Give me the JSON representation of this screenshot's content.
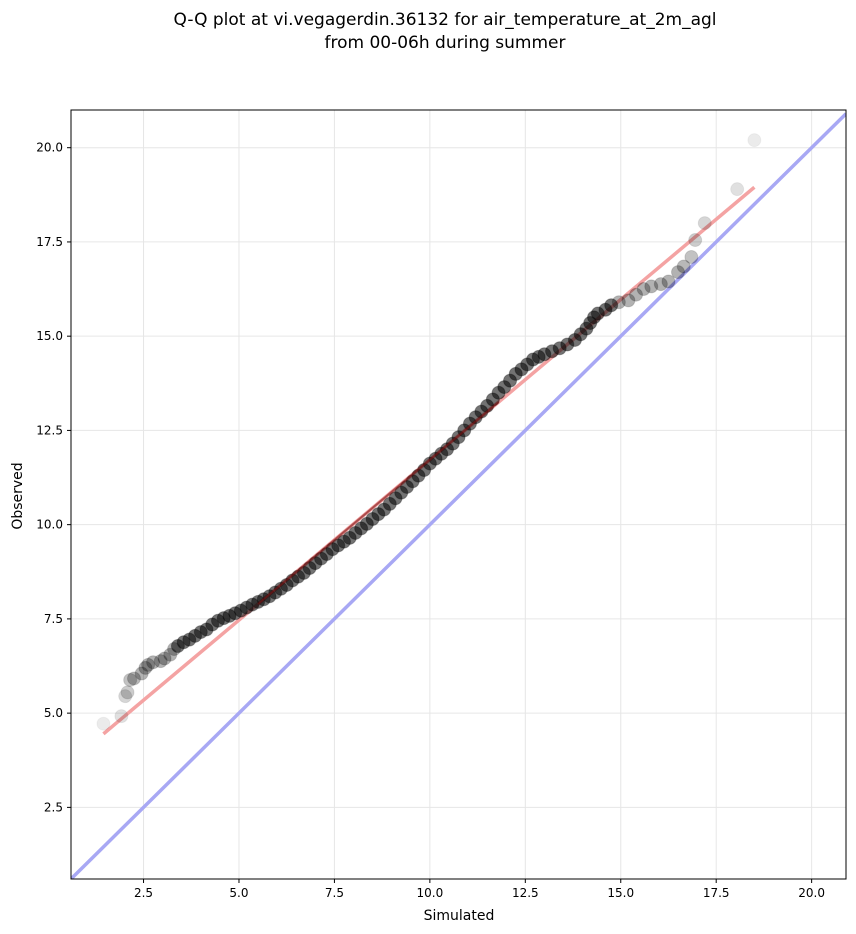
{
  "chart_data": {
    "type": "scatter",
    "title": "Q-Q plot at vi.vegagerdin.36132 for air_temperature_at_2m_agl\nfrom 00-06h during summer",
    "xlabel": "Simulated",
    "ylabel": "Observed",
    "xlim": [
      0.6,
      20.9
    ],
    "ylim": [
      0.6,
      21.0
    ],
    "xticks": [
      "2.5",
      "5.0",
      "7.5",
      "10.0",
      "12.5",
      "15.0",
      "17.5",
      "20.0"
    ],
    "yticks": [
      "2.5",
      "5.0",
      "7.5",
      "10.0",
      "12.5",
      "15.0",
      "17.5",
      "20.0"
    ],
    "grid": true,
    "series": [
      {
        "kind": "quantiles",
        "color": "#000000",
        "points": [
          [
            1.45,
            4.72
          ],
          [
            1.92,
            4.92
          ],
          [
            2.02,
            5.45
          ],
          [
            2.08,
            5.55
          ],
          [
            2.15,
            5.88
          ],
          [
            2.25,
            5.92
          ],
          [
            2.45,
            6.05
          ],
          [
            2.55,
            6.2
          ],
          [
            2.62,
            6.28
          ],
          [
            2.75,
            6.35
          ],
          [
            2.95,
            6.38
          ],
          [
            3.05,
            6.45
          ],
          [
            3.2,
            6.55
          ],
          [
            3.3,
            6.7
          ],
          [
            3.4,
            6.78
          ],
          [
            3.55,
            6.88
          ],
          [
            3.7,
            6.95
          ],
          [
            3.85,
            7.05
          ],
          [
            4.0,
            7.15
          ],
          [
            4.15,
            7.22
          ],
          [
            4.3,
            7.35
          ],
          [
            4.45,
            7.45
          ],
          [
            4.6,
            7.52
          ],
          [
            4.75,
            7.58
          ],
          [
            4.9,
            7.65
          ],
          [
            5.05,
            7.72
          ],
          [
            5.2,
            7.8
          ],
          [
            5.35,
            7.88
          ],
          [
            5.5,
            7.95
          ],
          [
            5.65,
            8.02
          ],
          [
            5.8,
            8.1
          ],
          [
            5.95,
            8.2
          ],
          [
            6.1,
            8.3
          ],
          [
            6.25,
            8.4
          ],
          [
            6.4,
            8.52
          ],
          [
            6.55,
            8.62
          ],
          [
            6.7,
            8.72
          ],
          [
            6.85,
            8.85
          ],
          [
            7.0,
            8.98
          ],
          [
            7.15,
            9.1
          ],
          [
            7.3,
            9.22
          ],
          [
            7.45,
            9.35
          ],
          [
            7.6,
            9.45
          ],
          [
            7.75,
            9.55
          ],
          [
            7.9,
            9.65
          ],
          [
            8.05,
            9.78
          ],
          [
            8.2,
            9.9
          ],
          [
            8.35,
            10.02
          ],
          [
            8.5,
            10.15
          ],
          [
            8.65,
            10.28
          ],
          [
            8.8,
            10.4
          ],
          [
            8.95,
            10.55
          ],
          [
            9.1,
            10.7
          ],
          [
            9.25,
            10.85
          ],
          [
            9.4,
            11.0
          ],
          [
            9.55,
            11.15
          ],
          [
            9.7,
            11.3
          ],
          [
            9.85,
            11.45
          ],
          [
            10.0,
            11.62
          ],
          [
            10.15,
            11.75
          ],
          [
            10.3,
            11.88
          ],
          [
            10.45,
            12.0
          ],
          [
            10.6,
            12.15
          ],
          [
            10.75,
            12.32
          ],
          [
            10.9,
            12.5
          ],
          [
            11.05,
            12.68
          ],
          [
            11.2,
            12.85
          ],
          [
            11.35,
            13.0
          ],
          [
            11.5,
            13.15
          ],
          [
            11.65,
            13.32
          ],
          [
            11.8,
            13.5
          ],
          [
            11.95,
            13.65
          ],
          [
            12.1,
            13.82
          ],
          [
            12.25,
            14.0
          ],
          [
            12.4,
            14.12
          ],
          [
            12.55,
            14.25
          ],
          [
            12.7,
            14.38
          ],
          [
            12.85,
            14.45
          ],
          [
            13.0,
            14.52
          ],
          [
            13.2,
            14.6
          ],
          [
            13.4,
            14.68
          ],
          [
            13.6,
            14.78
          ],
          [
            13.8,
            14.9
          ],
          [
            13.95,
            15.05
          ],
          [
            14.1,
            15.2
          ],
          [
            14.2,
            15.35
          ],
          [
            14.3,
            15.5
          ],
          [
            14.4,
            15.6
          ],
          [
            14.6,
            15.7
          ],
          [
            14.75,
            15.82
          ],
          [
            14.95,
            15.9
          ],
          [
            15.2,
            15.95
          ],
          [
            15.4,
            16.1
          ],
          [
            15.6,
            16.25
          ],
          [
            15.8,
            16.32
          ],
          [
            16.05,
            16.38
          ],
          [
            16.25,
            16.45
          ],
          [
            16.5,
            16.7
          ],
          [
            16.65,
            16.85
          ],
          [
            16.85,
            17.1
          ],
          [
            16.95,
            17.55
          ],
          [
            17.2,
            18.0
          ],
          [
            18.05,
            18.9
          ],
          [
            18.5,
            20.2
          ]
        ]
      },
      {
        "kind": "fit-line",
        "color": "#f4a3a3",
        "x": [
          1.45,
          18.5
        ],
        "y": [
          4.45,
          18.95
        ]
      },
      {
        "kind": "identity-line",
        "color": "#a8a8f4",
        "x": [
          0.6,
          20.9
        ],
        "y": [
          0.6,
          20.9
        ]
      }
    ]
  }
}
